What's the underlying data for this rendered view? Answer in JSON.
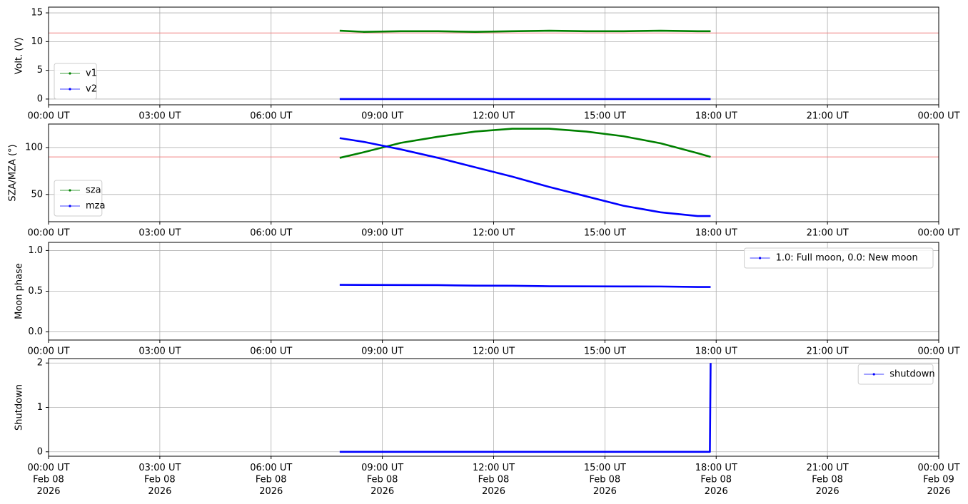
{
  "chart_data": [
    {
      "type": "line",
      "ylabel": "Volt. (V)",
      "xlim": [
        0,
        24
      ],
      "ylim": [
        -1,
        16
      ],
      "grid": true,
      "legend": "lower left",
      "xticks": [
        {
          "value": 0,
          "label": "00:00 UT"
        },
        {
          "value": 3,
          "label": "03:00 UT"
        },
        {
          "value": 6,
          "label": "06:00 UT"
        },
        {
          "value": 9,
          "label": "09:00 UT"
        },
        {
          "value": 12,
          "label": "12:00 UT"
        },
        {
          "value": 15,
          "label": "15:00 UT"
        },
        {
          "value": 18,
          "label": "18:00 UT"
        },
        {
          "value": 21,
          "label": "21:00 UT"
        },
        {
          "value": 24,
          "label": "00:00 UT"
        }
      ],
      "yticks": [
        0,
        5,
        10,
        15
      ],
      "hline": {
        "value": 11.5,
        "color": "#f08080"
      },
      "x": [
        7.85,
        8.5,
        9.5,
        10.5,
        11.5,
        12.5,
        13.5,
        14.5,
        15.5,
        16.5,
        17.5,
        17.85
      ],
      "series": [
        {
          "name": "v1",
          "color": "#008000",
          "values": [
            11.9,
            11.7,
            11.8,
            11.8,
            11.7,
            11.8,
            11.9,
            11.8,
            11.8,
            11.9,
            11.8,
            11.8
          ]
        },
        {
          "name": "v2",
          "color": "#0000ff",
          "values": [
            0,
            0,
            0,
            0,
            0,
            0,
            0,
            0,
            0,
            0,
            0,
            0
          ]
        }
      ]
    },
    {
      "type": "line",
      "ylabel": "SZA/MZA (°)",
      "xlim": [
        0,
        24
      ],
      "ylim": [
        21,
        125
      ],
      "grid": true,
      "legend": "lower left",
      "xticks": [
        {
          "value": 0,
          "label": "00:00 UT"
        },
        {
          "value": 3,
          "label": "03:00 UT"
        },
        {
          "value": 6,
          "label": "06:00 UT"
        },
        {
          "value": 9,
          "label": "09:00 UT"
        },
        {
          "value": 12,
          "label": "12:00 UT"
        },
        {
          "value": 15,
          "label": "15:00 UT"
        },
        {
          "value": 18,
          "label": "18:00 UT"
        },
        {
          "value": 21,
          "label": "21:00 UT"
        },
        {
          "value": 24,
          "label": "00:00 UT"
        }
      ],
      "yticks": [
        50,
        100
      ],
      "hline": {
        "value": 90,
        "color": "#f08080"
      },
      "x": [
        7.85,
        8.5,
        9.5,
        10.5,
        11.5,
        12.5,
        13.5,
        14.5,
        15.5,
        16.5,
        17.5,
        17.85
      ],
      "series": [
        {
          "name": "sza",
          "color": "#008000",
          "values": [
            89,
            95,
            105,
            111.5,
            117,
            120,
            120,
            117,
            112,
            104.5,
            94,
            90
          ]
        },
        {
          "name": "mza",
          "color": "#0000ff",
          "values": [
            110,
            106,
            98,
            89,
            79,
            69,
            58,
            48,
            38,
            31,
            27,
            27
          ]
        }
      ]
    },
    {
      "type": "line",
      "ylabel": "Moon phase",
      "xlim": [
        0,
        24
      ],
      "ylim": [
        -0.1,
        1.1
      ],
      "grid": true,
      "legend": "upper right",
      "xticks": [
        {
          "value": 0,
          "label": "00:00 UT"
        },
        {
          "value": 3,
          "label": "03:00 UT"
        },
        {
          "value": 6,
          "label": "06:00 UT"
        },
        {
          "value": 9,
          "label": "09:00 UT"
        },
        {
          "value": 12,
          "label": "12:00 UT"
        },
        {
          "value": 15,
          "label": "15:00 UT"
        },
        {
          "value": 18,
          "label": "18:00 UT"
        },
        {
          "value": 21,
          "label": "21:00 UT"
        },
        {
          "value": 24,
          "label": "00:00 UT"
        }
      ],
      "yticks": [
        {
          "value": 0,
          "label": "0.0"
        },
        0.5,
        {
          "value": 1,
          "label": "1.0"
        }
      ],
      "x": [
        7.85,
        8.5,
        9.5,
        10.5,
        11.5,
        12.5,
        13.5,
        14.5,
        15.5,
        16.5,
        17.5,
        17.85
      ],
      "series": [
        {
          "name": "1.0: Full moon, 0.0: New moon",
          "color": "#0000ff",
          "values": [
            0.578,
            0.577,
            0.576,
            0.575,
            0.568,
            0.567,
            0.561,
            0.56,
            0.559,
            0.558,
            0.552,
            0.552
          ]
        }
      ]
    },
    {
      "type": "line",
      "ylabel": "Shutdown",
      "xlim": [
        0,
        24
      ],
      "ylim": [
        -0.1,
        2.1
      ],
      "grid": true,
      "legend": "upper right",
      "xticks": [
        {
          "value": 0,
          "label": "00:00 UT\nFeb 08\n2026"
        },
        {
          "value": 3,
          "label": "03:00 UT\nFeb 08\n2026"
        },
        {
          "value": 6,
          "label": "06:00 UT\nFeb 08\n2026"
        },
        {
          "value": 9,
          "label": "09:00 UT\nFeb 08\n2026"
        },
        {
          "value": 12,
          "label": "12:00 UT\nFeb 08\n2026"
        },
        {
          "value": 15,
          "label": "15:00 UT\nFeb 08\n2026"
        },
        {
          "value": 18,
          "label": "18:00 UT\nFeb 08\n2026"
        },
        {
          "value": 21,
          "label": "21:00 UT\nFeb 08\n2026"
        },
        {
          "value": 24,
          "label": "00:00 UT\nFeb 09\n2026"
        }
      ],
      "yticks": [
        0,
        1,
        2
      ],
      "x": [
        7.85,
        9,
        10,
        11,
        12,
        13,
        14,
        15,
        16,
        17,
        17.83,
        17.85
      ],
      "series": [
        {
          "name": "shutdown",
          "color": "#0000ff",
          "values": [
            0,
            0,
            0,
            0,
            0,
            0,
            0,
            0,
            0,
            0,
            0,
            2
          ]
        }
      ]
    }
  ]
}
